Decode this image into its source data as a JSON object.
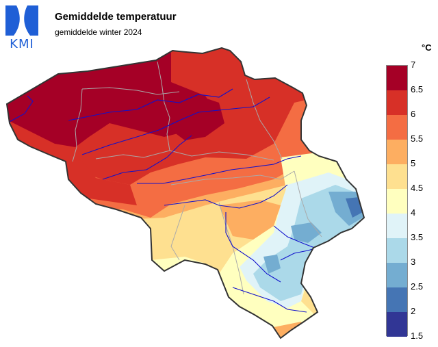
{
  "header": {
    "logo_text": "KMI",
    "title": "Gemiddelde temperatuur",
    "subtitle": "gemiddelde winter 2024"
  },
  "legend": {
    "unit": "°C",
    "colors": [
      "#a50026",
      "#d73027",
      "#f46d43",
      "#fdae61",
      "#fee090",
      "#ffffbf",
      "#e0f3f8",
      "#abd9e9",
      "#74add1",
      "#4575b4",
      "#313695"
    ],
    "labels": [
      "7",
      "6.5",
      "6",
      "5.5",
      "5",
      "4.5",
      "4",
      "3.5",
      "3",
      "2.5",
      "2",
      "1.5"
    ]
  },
  "map": {
    "region": "Belgium",
    "border_color": "#333333",
    "river_color": "#1010cc",
    "province_border_color": "#aaaaaa"
  }
}
